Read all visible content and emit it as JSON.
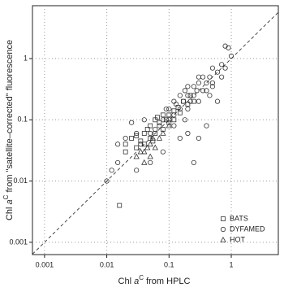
{
  "chart_data": {
    "type": "scatter",
    "x_label": {
      "prefix": "Chl",
      "symbol": "a",
      "superscript": "C",
      "suffix": "from HPLC"
    },
    "y_label": {
      "prefix": "Chl",
      "symbol": "a",
      "superscript": "C",
      "suffix": "from \"satellite–corrected\" fluorescence"
    },
    "xlog": true,
    "ylog": true,
    "grid": true,
    "legend": "lower right",
    "xlim": [
      0.00064,
      5.7
    ],
    "ylim": [
      0.00063,
      7.3
    ],
    "xticks": [
      0.001,
      0.01,
      0.1,
      1
    ],
    "yticks": [
      0.001,
      0.01,
      0.1,
      1
    ],
    "series": [
      {
        "name": "BATS",
        "marker": "square",
        "color": "#333333",
        "x": [
          0.016,
          0.02,
          0.02,
          0.025,
          0.03,
          0.035,
          0.04,
          0.04,
          0.05,
          0.05,
          0.06,
          0.06,
          0.07,
          0.08,
          0.08,
          0.09,
          0.1,
          0.1,
          0.12,
          0.12,
          0.14,
          0.15,
          0.17,
          0.2,
          0.22,
          0.25,
          0.03,
          0.045,
          0.055,
          0.065
        ],
        "values": [
          0.004,
          0.03,
          0.04,
          0.05,
          0.035,
          0.045,
          0.04,
          0.06,
          0.05,
          0.08,
          0.1,
          0.06,
          0.09,
          0.07,
          0.12,
          0.1,
          0.12,
          0.09,
          0.14,
          0.1,
          0.16,
          0.13,
          0.2,
          0.18,
          0.25,
          0.2,
          0.055,
          0.07,
          0.045,
          0.11
        ]
      },
      {
        "name": "DYFAMED",
        "marker": "circle",
        "color": "#333333",
        "x": [
          0.01,
          0.012,
          0.015,
          0.015,
          0.02,
          0.025,
          0.03,
          0.035,
          0.04,
          0.05,
          0.06,
          0.07,
          0.08,
          0.09,
          0.1,
          0.1,
          0.12,
          0.12,
          0.13,
          0.15,
          0.15,
          0.17,
          0.18,
          0.2,
          0.2,
          0.22,
          0.25,
          0.25,
          0.28,
          0.3,
          0.3,
          0.35,
          0.35,
          0.4,
          0.4,
          0.45,
          0.5,
          0.5,
          0.6,
          0.7,
          0.8,
          0.9,
          1,
          0.8,
          0.3,
          0.25,
          0.4,
          0.2,
          0.15,
          0.6,
          0.08,
          0.03,
          0.05,
          0.2,
          0.3,
          0.45,
          0.7,
          0.12,
          0.5,
          0.18
        ],
        "values": [
          0.01,
          0.015,
          0.02,
          0.04,
          0.05,
          0.09,
          0.06,
          0.04,
          0.1,
          0.06,
          0.07,
          0.08,
          0.1,
          0.15,
          0.1,
          0.15,
          0.2,
          0.12,
          0.18,
          0.15,
          0.25,
          0.2,
          0.3,
          0.15,
          0.25,
          0.2,
          0.35,
          0.25,
          0.3,
          0.4,
          0.2,
          0.3,
          0.5,
          0.4,
          0.3,
          0.5,
          0.4,
          0.35,
          0.6,
          0.8,
          0.7,
          1.5,
          1.1,
          1.6,
          0.05,
          0.02,
          0.08,
          0.06,
          0.05,
          0.2,
          0.03,
          0.015,
          0.02,
          0.35,
          0.5,
          0.25,
          0.5,
          0.08,
          0.7,
          0.1
        ]
      },
      {
        "name": "HOT",
        "marker": "triangle",
        "color": "#333333",
        "x": [
          0.03,
          0.035,
          0.04,
          0.045,
          0.05,
          0.05,
          0.06,
          0.07,
          0.04,
          0.055,
          0.08,
          0.1
        ],
        "values": [
          0.025,
          0.03,
          0.03,
          0.035,
          0.04,
          0.025,
          0.035,
          0.05,
          0.02,
          0.05,
          0.06,
          0.08
        ]
      }
    ]
  }
}
